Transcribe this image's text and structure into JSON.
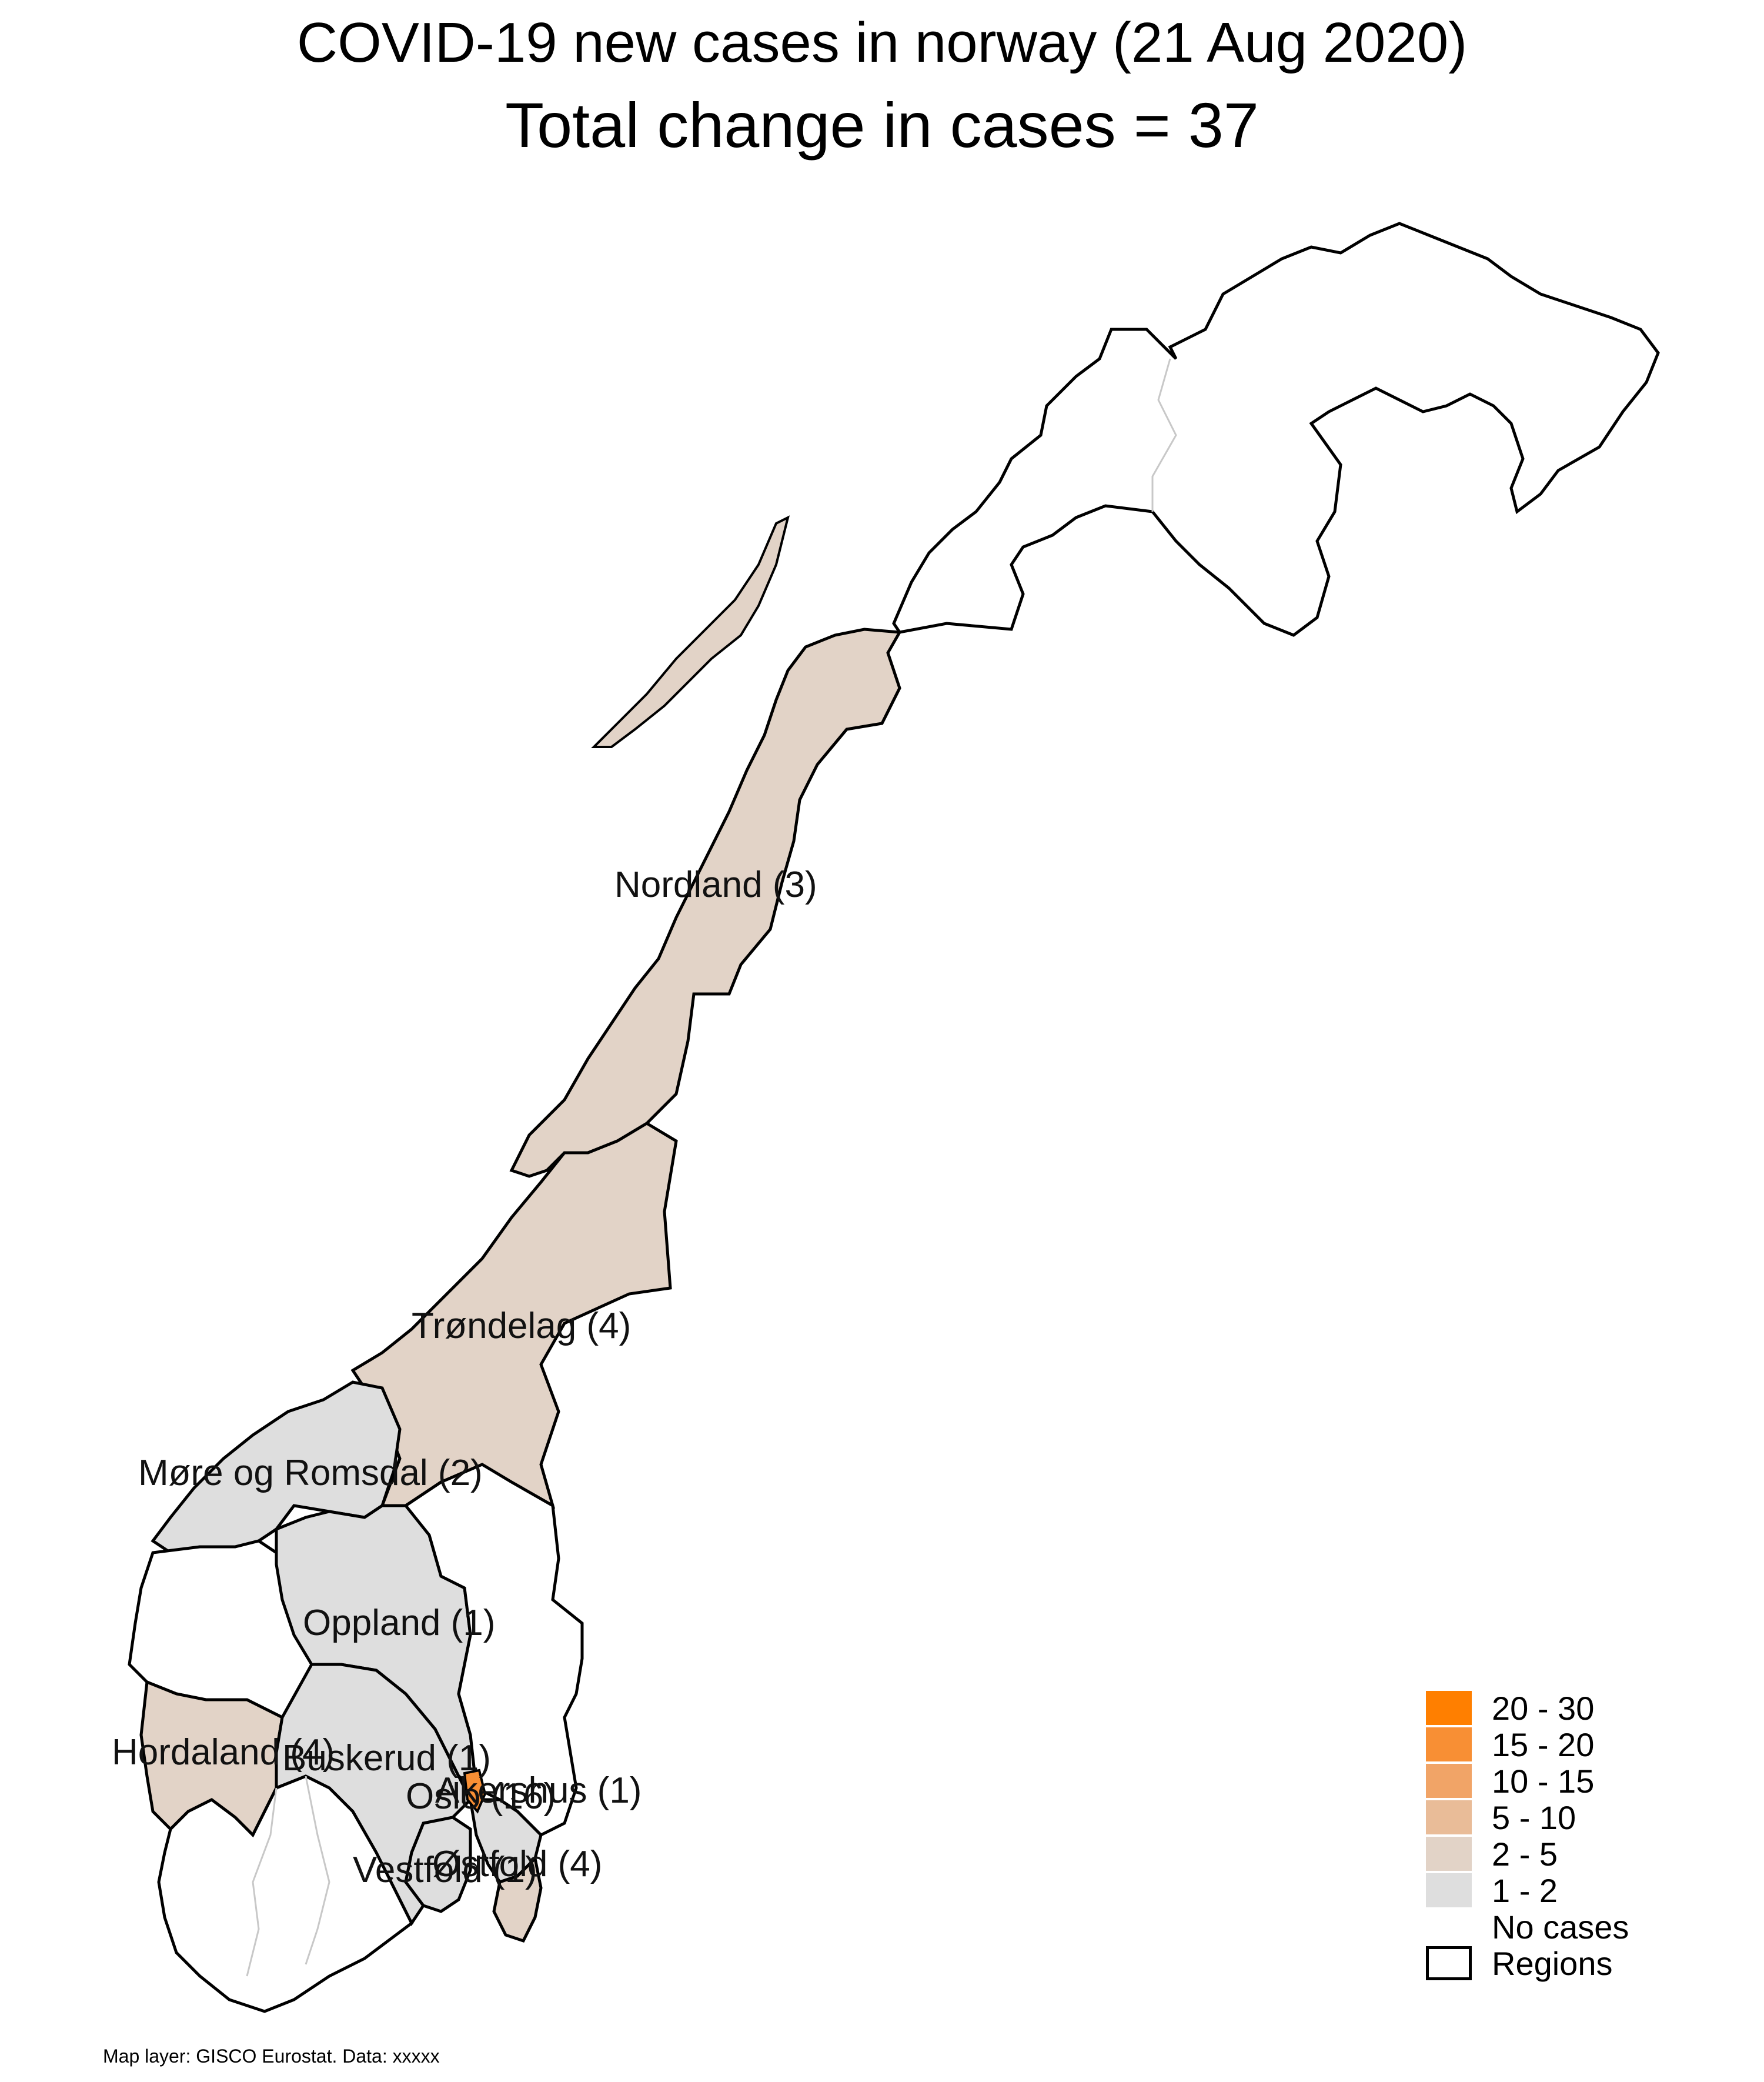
{
  "title": {
    "line1": "COVID-19 new cases in norway (21 Aug 2020)",
    "line2": "Total change in cases  = 37"
  },
  "colors": {
    "c20_30": "#ff7f00",
    "c15_20": "#f88f34",
    "c10_15": "#f1a467",
    "c5_10": "#e9bc98",
    "c2_5": "#e2d3c7",
    "c1_2": "#dedede",
    "none": "#ffffff",
    "border": "#000000",
    "inner_border": "#c8c8c8"
  },
  "regions": [
    {
      "name": "Nordland (3)",
      "class": "2 - 5",
      "cases": 3
    },
    {
      "name": "Trøndelag (4)",
      "class": "2 - 5",
      "cases": 4
    },
    {
      "name": "Møre og Romsdal (2)",
      "class": "1 - 2",
      "cases": 2
    },
    {
      "name": "Oppland (1)",
      "class": "1 - 2",
      "cases": 1
    },
    {
      "name": "Hordaland (4)",
      "class": "2 - 5",
      "cases": 4
    },
    {
      "name": "Buskerud (1)",
      "class": "1 - 2",
      "cases": 1
    },
    {
      "name": "Akershus (1)",
      "class": "1 - 2",
      "cases": 1
    },
    {
      "name": "Oslo (16)",
      "class": "15 - 20",
      "cases": 16
    },
    {
      "name": "Vestfold (1)",
      "class": "1 - 2",
      "cases": 1
    },
    {
      "name": "Østfold (4)",
      "class": "2 - 5",
      "cases": 4
    }
  ],
  "legend": {
    "items": [
      {
        "label": "20 - 30",
        "color": "#ff7f00"
      },
      {
        "label": "15 - 20",
        "color": "#f88f34"
      },
      {
        "label": "10 - 15",
        "color": "#f1a467"
      },
      {
        "label": "5 - 10",
        "color": "#e9bc98"
      },
      {
        "label": "2 - 5",
        "color": "#e2d3c7"
      },
      {
        "label": "1 - 2",
        "color": "#dedede"
      },
      {
        "label": "No cases",
        "color": "#ffffff"
      }
    ],
    "regions_label": "Regions"
  },
  "footer": "Map layer: GISCO Eurostat. Data: xxxxx"
}
